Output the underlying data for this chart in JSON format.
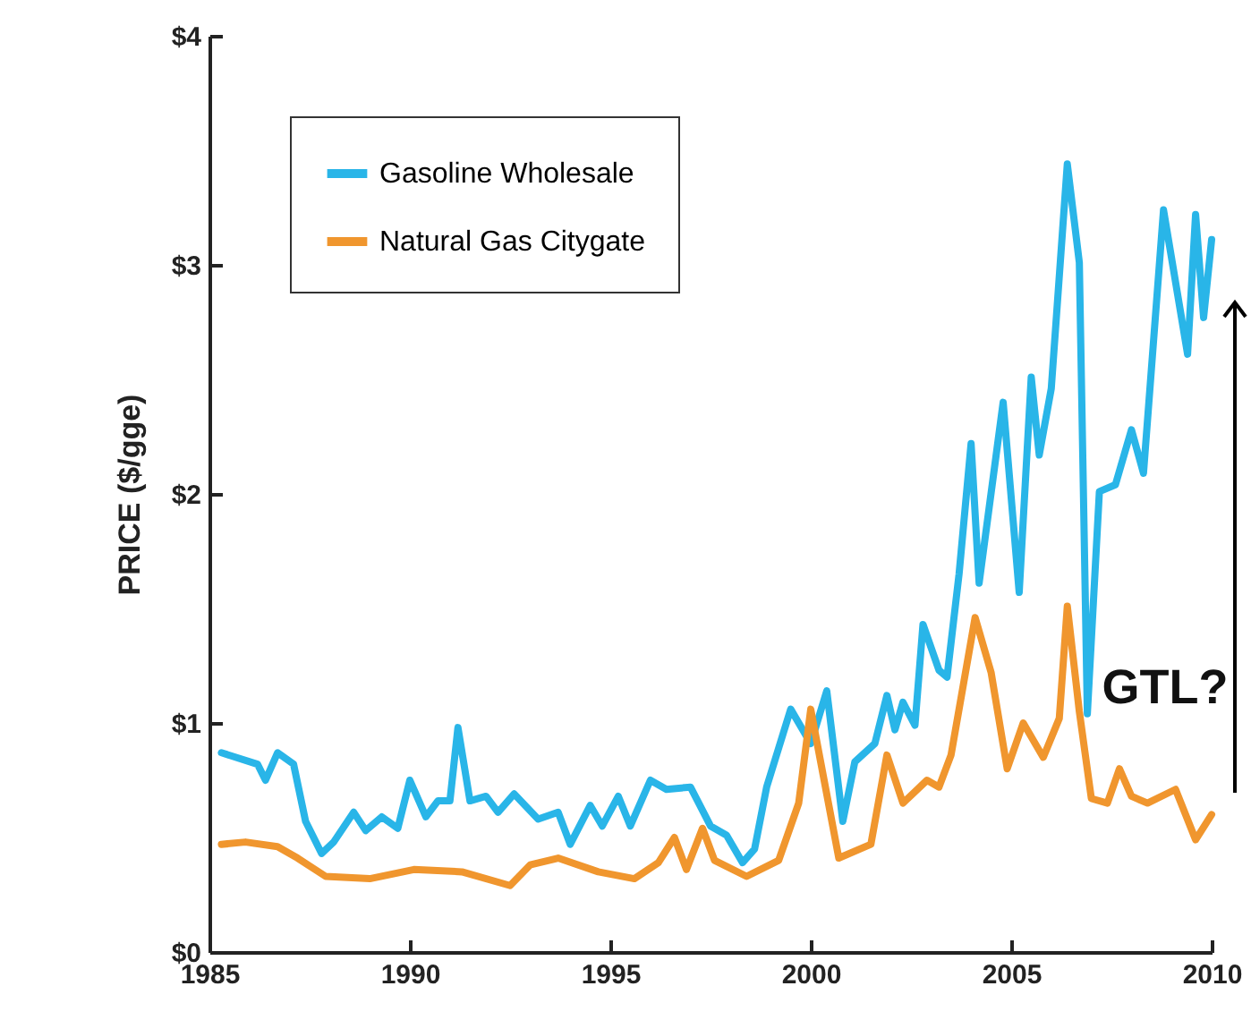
{
  "chart_data": {
    "type": "line",
    "ylabel": "PRICE ($/gge)",
    "xlim": [
      1985,
      2010
    ],
    "xticks": [
      1985,
      1990,
      1995,
      2000,
      2005,
      2010
    ],
    "ylim": [
      0,
      4
    ],
    "yticks": [
      {
        "value": 0,
        "label": "$0"
      },
      {
        "value": 1,
        "label": "$1"
      },
      {
        "value": 2,
        "label": "$2"
      },
      {
        "value": 3,
        "label": "$3"
      },
      {
        "value": 4,
        "label": "$4"
      }
    ],
    "grid": false,
    "legend": "top left",
    "annotations": [
      "GTL?"
    ],
    "series": [
      {
        "name": "Gasoline Wholesale",
        "color": "#29b5e8",
        "x": [
          1985.3,
          1986.2,
          1986.4,
          1986.7,
          1987.1,
          1987.4,
          1987.8,
          1988.1,
          1988.6,
          1988.9,
          1989.3,
          1989.7,
          1990.0,
          1990.4,
          1990.7,
          1991.0,
          1991.2,
          1991.5,
          1991.9,
          1992.2,
          1992.6,
          1993.2,
          1993.7,
          1994.0,
          1994.5,
          1994.8,
          1995.2,
          1995.5,
          1996.0,
          1996.4,
          1997.0,
          1997.5,
          1997.9,
          1998.3,
          1998.6,
          1998.9,
          1999.5,
          2000.0,
          2000.4,
          2000.8,
          2001.1,
          2001.6,
          2001.9,
          2002.1,
          2002.3,
          2002.6,
          2002.8,
          2003.2,
          2003.4,
          2003.7,
          2004.0,
          2004.2,
          2004.8,
          2005.2,
          2005.5,
          2005.7,
          2006.0,
          2006.4,
          2006.7,
          2006.9,
          2007.2,
          2007.6,
          2008.0,
          2008.3,
          2008.8,
          2009.4,
          2009.6,
          2009.8,
          2010.0
        ],
        "values": [
          0.87,
          0.82,
          0.75,
          0.87,
          0.82,
          0.57,
          0.43,
          0.48,
          0.61,
          0.53,
          0.59,
          0.54,
          0.75,
          0.59,
          0.66,
          0.66,
          0.98,
          0.66,
          0.68,
          0.61,
          0.69,
          0.58,
          0.61,
          0.47,
          0.64,
          0.55,
          0.68,
          0.55,
          0.75,
          0.71,
          0.72,
          0.55,
          0.51,
          0.39,
          0.45,
          0.72,
          1.06,
          0.91,
          1.14,
          0.57,
          0.83,
          0.91,
          1.12,
          0.97,
          1.09,
          0.99,
          1.43,
          1.23,
          1.2,
          1.65,
          2.22,
          1.61,
          2.4,
          1.57,
          2.51,
          2.17,
          2.46,
          3.44,
          3.01,
          1.04,
          2.01,
          2.04,
          2.28,
          2.09,
          3.24,
          2.61,
          3.22,
          2.77,
          3.11
        ]
      },
      {
        "name": "Natural Gas Citygate",
        "color": "#f0962e",
        "x": [
          1985.3,
          1985.9,
          1986.7,
          1987.2,
          1987.9,
          1989.0,
          1990.1,
          1991.3,
          1992.5,
          1993.0,
          1993.7,
          1994.7,
          1995.6,
          1996.2,
          1996.6,
          1996.9,
          1997.3,
          1997.6,
          1998.4,
          1999.2,
          1999.7,
          2000.0,
          2000.7,
          2001.5,
          2001.9,
          2002.3,
          2002.9,
          2003.2,
          2003.5,
          2004.1,
          2004.5,
          2004.9,
          2005.3,
          2005.8,
          2006.2,
          2006.4,
          2006.7,
          2007.0,
          2007.4,
          2007.7,
          2008.0,
          2008.4,
          2009.1,
          2009.6,
          2010.0
        ],
        "values": [
          0.47,
          0.48,
          0.46,
          0.41,
          0.33,
          0.32,
          0.36,
          0.35,
          0.29,
          0.38,
          0.41,
          0.35,
          0.32,
          0.39,
          0.5,
          0.36,
          0.54,
          0.4,
          0.33,
          0.4,
          0.65,
          1.06,
          0.41,
          0.47,
          0.86,
          0.65,
          0.75,
          0.72,
          0.86,
          1.46,
          1.22,
          0.8,
          1.0,
          0.85,
          1.02,
          1.51,
          1.05,
          0.67,
          0.65,
          0.8,
          0.68,
          0.65,
          0.71,
          0.49,
          0.6
        ]
      }
    ]
  }
}
